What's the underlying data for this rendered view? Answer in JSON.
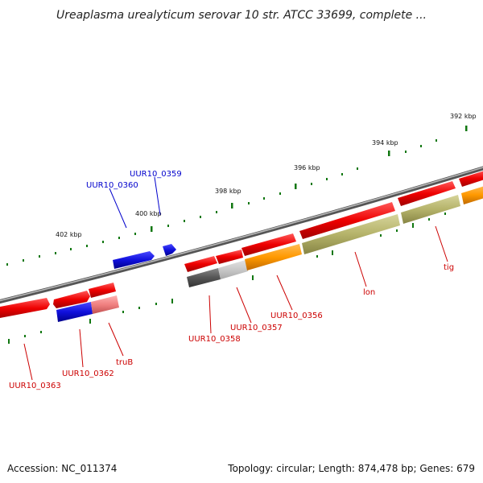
{
  "title": "Ureaplasma urealyticum serovar 10 str. ATCC 33699, complete ...",
  "footer": {
    "accession": "Accession: NC_011374",
    "topology": "Topology: circular; Length: 874,478 bp; Genes: 679"
  },
  "ruler": {
    "ticks": [
      "392 kbp",
      "394 kbp",
      "396 kbp",
      "398 kbp",
      "400 kbp",
      "402 kbp"
    ]
  },
  "colors": {
    "backbone": "#888888",
    "forward_gene": "#ee0000",
    "reverse_gene_red": "#ee0000",
    "blue_gene": "#1010dd",
    "orange_feature": "#ff9900",
    "olive_feature": "#b5b36a",
    "gray_feature": "#555555",
    "pink_feature": "#f08080",
    "tick_green": "#117711",
    "label_red": "#cc0000",
    "label_blue": "#0000cc"
  },
  "genes": [
    {
      "label": "UUR10_0359",
      "color": "blue"
    },
    {
      "label": "UUR10_0360",
      "color": "blue"
    },
    {
      "label": "UUR10_0356",
      "color": "red"
    },
    {
      "label": "UUR10_0357",
      "color": "red"
    },
    {
      "label": "UUR10_0358",
      "color": "red"
    },
    {
      "label": "lon",
      "color": "red"
    },
    {
      "label": "tig",
      "color": "red"
    },
    {
      "label": "truB",
      "color": "red"
    },
    {
      "label": "UUR10_0362",
      "color": "red"
    },
    {
      "label": "UUR10_0363",
      "color": "red"
    }
  ]
}
